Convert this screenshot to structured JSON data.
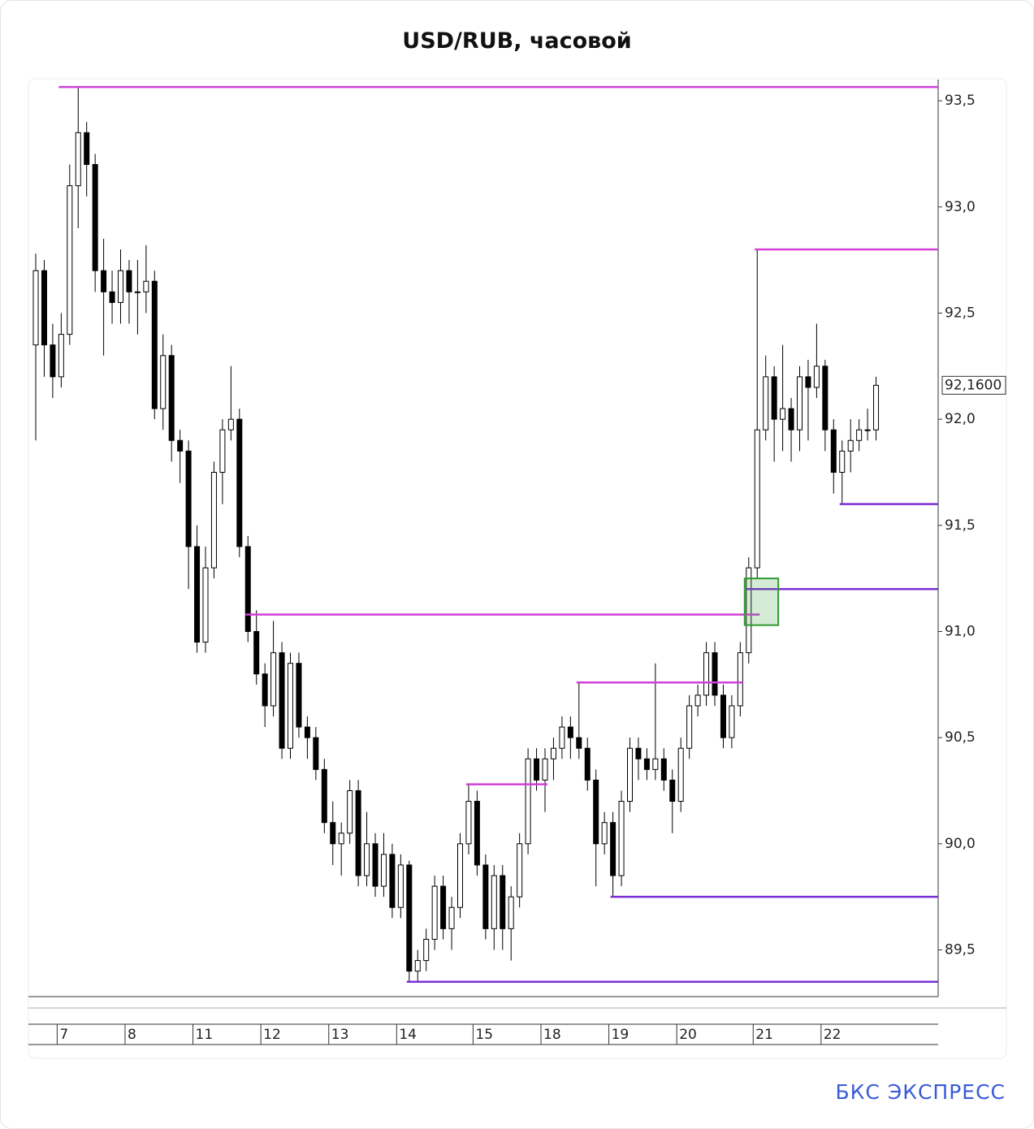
{
  "chart_data": {
    "type": "candlestick",
    "title": "USD/RUB, часовой",
    "categories": [
      null,
      null,
      null,
      "7",
      null,
      null,
      null,
      null,
      null,
      null,
      null,
      "8",
      null,
      null,
      null,
      null,
      null,
      null,
      null,
      "11",
      null,
      null,
      null,
      null,
      null,
      null,
      null,
      "12",
      null,
      null,
      null,
      null,
      null,
      null,
      null,
      "13",
      null,
      null,
      null,
      null,
      null,
      null,
      null,
      "14",
      null,
      null,
      null,
      null,
      null,
      null,
      null,
      null,
      "15",
      null,
      null,
      null,
      null,
      null,
      null,
      null,
      "18",
      null,
      null,
      null,
      null,
      null,
      null,
      null,
      "19",
      null,
      null,
      null,
      null,
      null,
      null,
      null,
      "20",
      null,
      null,
      null,
      null,
      null,
      null,
      null,
      null,
      "21",
      null,
      null,
      null,
      null,
      null,
      null,
      null,
      "22",
      null,
      null,
      null,
      null,
      null,
      null
    ],
    "open": [
      92.35,
      92.7,
      92.35,
      92.2,
      92.4,
      93.1,
      93.35,
      93.2,
      92.7,
      92.6,
      92.55,
      92.7,
      92.6,
      92.6,
      92.65,
      92.05,
      92.3,
      91.9,
      91.85,
      91.4,
      90.95,
      91.3,
      91.75,
      91.95,
      92.0,
      91.4,
      91.0,
      90.8,
      90.65,
      90.9,
      90.45,
      90.85,
      90.55,
      90.5,
      90.35,
      90.1,
      90.0,
      90.05,
      90.25,
      89.85,
      90.0,
      89.8,
      89.95,
      89.7,
      89.9,
      89.4,
      89.45,
      89.55,
      89.8,
      89.6,
      89.7,
      90.0,
      90.2,
      89.9,
      89.6,
      89.85,
      89.6,
      89.75,
      90.0,
      90.4,
      90.3,
      90.4,
      90.45,
      90.55,
      90.5,
      90.45,
      90.3,
      90.0,
      90.1,
      89.85,
      90.2,
      90.45,
      90.4,
      90.35,
      90.4,
      90.3,
      90.2,
      90.45,
      90.65,
      90.7,
      90.9,
      90.7,
      90.5,
      90.65,
      90.9,
      91.3,
      91.95,
      92.2,
      92.0,
      92.05,
      91.95,
      92.2,
      92.15,
      92.25,
      91.95,
      91.75,
      91.85,
      91.9,
      91.95,
      91.95
    ],
    "high": [
      92.78,
      92.75,
      92.45,
      92.5,
      93.2,
      93.56,
      93.4,
      93.25,
      92.85,
      92.7,
      92.8,
      92.75,
      92.75,
      92.82,
      92.7,
      92.4,
      92.35,
      91.95,
      91.9,
      91.5,
      91.4,
      91.8,
      92.0,
      92.25,
      92.05,
      91.45,
      91.1,
      90.85,
      91.05,
      90.95,
      90.9,
      90.9,
      90.6,
      90.55,
      90.4,
      90.2,
      90.1,
      90.3,
      90.3,
      90.15,
      90.05,
      90.05,
      90.0,
      89.95,
      89.92,
      89.5,
      89.6,
      89.85,
      89.85,
      89.75,
      90.05,
      90.28,
      90.25,
      89.95,
      89.9,
      89.9,
      89.8,
      90.05,
      90.45,
      90.45,
      90.45,
      90.5,
      90.6,
      90.6,
      90.76,
      90.5,
      90.35,
      90.15,
      90.15,
      90.25,
      90.5,
      90.5,
      90.45,
      90.85,
      90.45,
      90.35,
      90.5,
      90.7,
      90.75,
      90.95,
      90.95,
      90.75,
      90.7,
      90.95,
      91.35,
      92.8,
      92.3,
      92.25,
      92.35,
      92.1,
      92.25,
      92.28,
      92.45,
      92.28,
      92.0,
      91.9,
      92.0,
      92.0,
      92.05,
      92.2
    ],
    "low": [
      91.9,
      92.2,
      92.1,
      92.15,
      92.35,
      92.9,
      93.05,
      92.6,
      92.3,
      92.45,
      92.45,
      92.45,
      92.4,
      92.5,
      92.0,
      91.95,
      91.8,
      91.7,
      91.2,
      90.9,
      90.9,
      91.25,
      91.6,
      91.9,
      91.35,
      90.95,
      90.75,
      90.55,
      90.6,
      90.4,
      90.4,
      90.5,
      90.4,
      90.3,
      90.05,
      89.9,
      89.85,
      90.0,
      89.8,
      89.8,
      89.75,
      89.75,
      89.65,
      89.65,
      89.35,
      89.35,
      89.4,
      89.5,
      89.55,
      89.5,
      89.65,
      89.95,
      89.85,
      89.55,
      89.5,
      89.5,
      89.45,
      89.7,
      89.95,
      90.25,
      90.15,
      90.3,
      90.4,
      90.4,
      90.4,
      90.25,
      89.8,
      89.95,
      89.75,
      89.8,
      90.15,
      90.3,
      90.3,
      90.3,
      90.25,
      90.05,
      90.15,
      90.4,
      90.6,
      90.65,
      90.65,
      90.45,
      90.45,
      90.6,
      90.85,
      91.25,
      91.9,
      91.8,
      91.85,
      91.8,
      91.85,
      91.9,
      92.1,
      91.85,
      91.65,
      91.6,
      91.75,
      91.85,
      91.9,
      91.9
    ],
    "close": [
      92.7,
      92.35,
      92.2,
      92.4,
      93.1,
      93.35,
      93.2,
      92.7,
      92.6,
      92.55,
      92.7,
      92.6,
      92.6,
      92.65,
      92.05,
      92.3,
      91.9,
      91.85,
      91.4,
      90.95,
      91.3,
      91.75,
      91.95,
      92.0,
      91.4,
      91.0,
      90.8,
      90.65,
      90.9,
      90.45,
      90.85,
      90.55,
      90.5,
      90.35,
      90.1,
      90.0,
      90.05,
      90.25,
      89.85,
      90.0,
      89.8,
      89.95,
      89.7,
      89.9,
      89.4,
      89.45,
      89.55,
      89.8,
      89.6,
      89.7,
      90.0,
      90.2,
      89.9,
      89.6,
      89.85,
      89.6,
      89.75,
      90.0,
      90.4,
      90.3,
      90.4,
      90.45,
      90.55,
      90.5,
      90.45,
      90.3,
      90.0,
      90.1,
      89.85,
      90.2,
      90.45,
      90.4,
      90.35,
      90.4,
      90.3,
      90.2,
      90.45,
      90.65,
      90.7,
      90.9,
      90.7,
      90.5,
      90.65,
      90.9,
      91.3,
      91.95,
      92.2,
      92.0,
      92.05,
      91.95,
      92.2,
      92.15,
      92.25,
      91.95,
      91.75,
      91.85,
      91.9,
      91.95,
      91.95,
      92.16
    ],
    "up_color": "#ffffff",
    "down_color": "#000000",
    "levels": [
      {
        "value": 93.565,
        "from": 3,
        "color": "#d23fd8"
      },
      {
        "value": 92.8,
        "from": 85,
        "color": "#d23fd8"
      },
      {
        "value": 91.6,
        "from": 95,
        "color": "#7b2fd6"
      },
      {
        "value": 91.2,
        "from": 84,
        "color": "#7b2fd6"
      },
      {
        "value": 91.08,
        "from": 25,
        "to": 85,
        "color": "#d23fd8"
      },
      {
        "value": 90.76,
        "from": 64,
        "to": 83,
        "color": "#d23fd8"
      },
      {
        "value": 90.28,
        "from": 51,
        "to": 60,
        "color": "#d23fd8"
      },
      {
        "value": 89.75,
        "from": 68,
        "color": "#7b2fd6"
      },
      {
        "value": 89.35,
        "from": 44,
        "color": "#7b2fd6"
      }
    ],
    "zone": {
      "from": 84,
      "to": 85,
      "low": 91.03,
      "high": 91.25,
      "color": "#2e9a2e"
    },
    "last_price": {
      "value": 92.16,
      "label": "92,1600"
    },
    "ylim": [
      89.28,
      93.6
    ],
    "yticks": [
      {
        "value": 89.5,
        "label": "89,5"
      },
      {
        "value": 90,
        "label": "90,0"
      },
      {
        "value": 90.5,
        "label": "90,5"
      },
      {
        "value": 91,
        "label": "91,0"
      },
      {
        "value": 91.5,
        "label": "91,5"
      },
      {
        "value": 92,
        "label": "92,0"
      },
      {
        "value": 92.5,
        "label": "92,5"
      },
      {
        "value": 93,
        "label": "93,0"
      },
      {
        "value": 93.5,
        "label": "93,5"
      }
    ]
  },
  "footer": "БКС ЭКСПРЕСС"
}
